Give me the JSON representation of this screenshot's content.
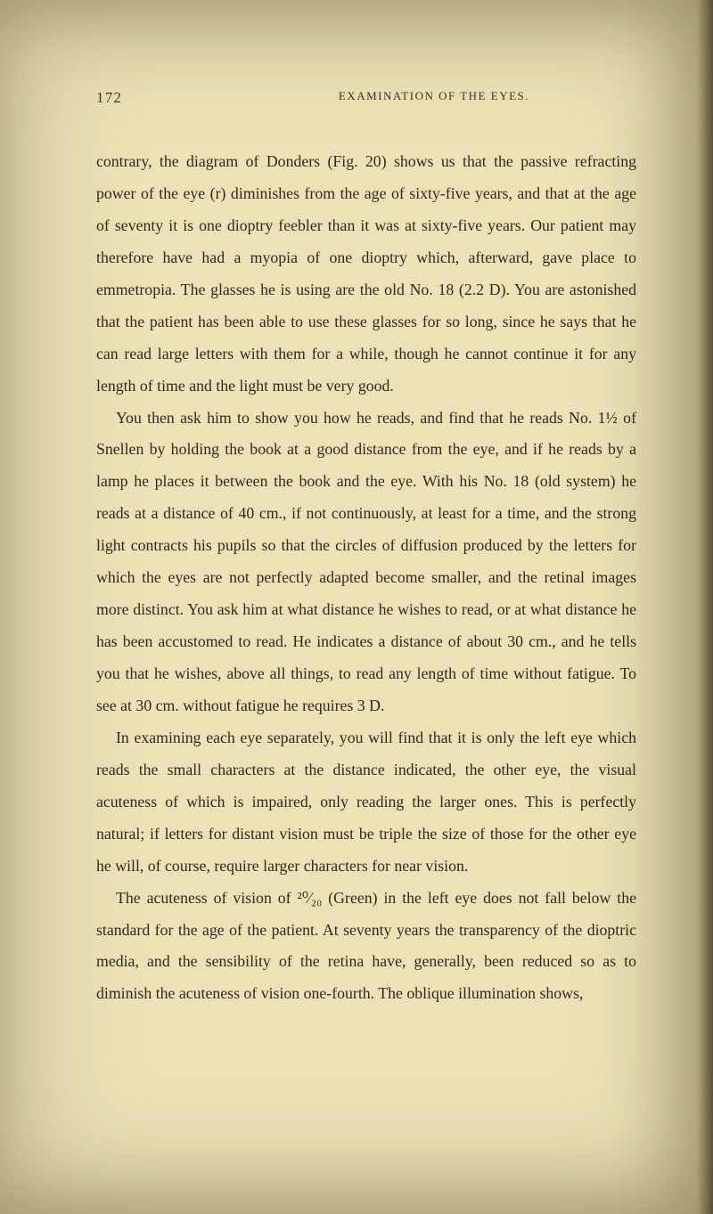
{
  "page": {
    "number": "172",
    "header_title": "EXAMINATION OF THE EYES.",
    "background_color": "#ece2b6",
    "text_color": "#2d2a20",
    "font_size_body": 17.8,
    "line_height": 2.02,
    "font_size_header": 13,
    "font_size_pagenum": 17
  },
  "paragraphs": {
    "p1": "contrary, the diagram of Donders (Fig. 20) shows us that the passive refracting power of the eye (r) diminishes from the age of sixty-five years, and that at the age of seventy it is one dioptry feebler than it was at sixty-five years. Our patient may therefore have had a myopia of one dioptry which, afterward, gave place to emmetropia. The glasses he is using are the old No. 18 (2.2 D). You are astonished that the patient has been able to use these glasses for so long, since he says that he can read large letters with them for a while, though he cannot continue it for any length of time and the light must be very good.",
    "p2": "You then ask him to show you how he reads, and find that he reads No. 1½ of Snellen by holding the book at a good distance from the eye, and if he reads by a lamp he places it between the book and the eye. With his No. 18 (old system) he reads at a distance of 40 cm., if not continuously, at least for a time, and the strong light contracts his pupils so that the circles of diffusion produced by the letters for which the eyes are not perfectly adapted become smaller, and the retinal images more distinct. You ask him at what distance he wishes to read, or at what distance he has been accustomed to read. He indicates a distance of about 30 cm., and he tells you that he wishes, above all things, to read any length of time without fatigue. To see at 30 cm. without fatigue he requires 3 D.",
    "p3": "In examining each eye separately, you will find that it is only the left eye which reads the small characters at the distance indicated, the other eye, the visual acuteness of which is impaired, only reading the larger ones. This is perfectly natural; if letters for distant vision must be triple the size of those for the other eye he will, of course, require larger characters for near vision.",
    "p4": "The acuteness of vision of ²⁰⁄₂₀ (Green) in the left eye does not fall below the standard for the age of the patient. At seventy years the transparency of the dioptric media, and the sensibility of the retina have, generally, been reduced so as to diminish the acuteness of vision one-fourth. The oblique illumination shows,"
  }
}
